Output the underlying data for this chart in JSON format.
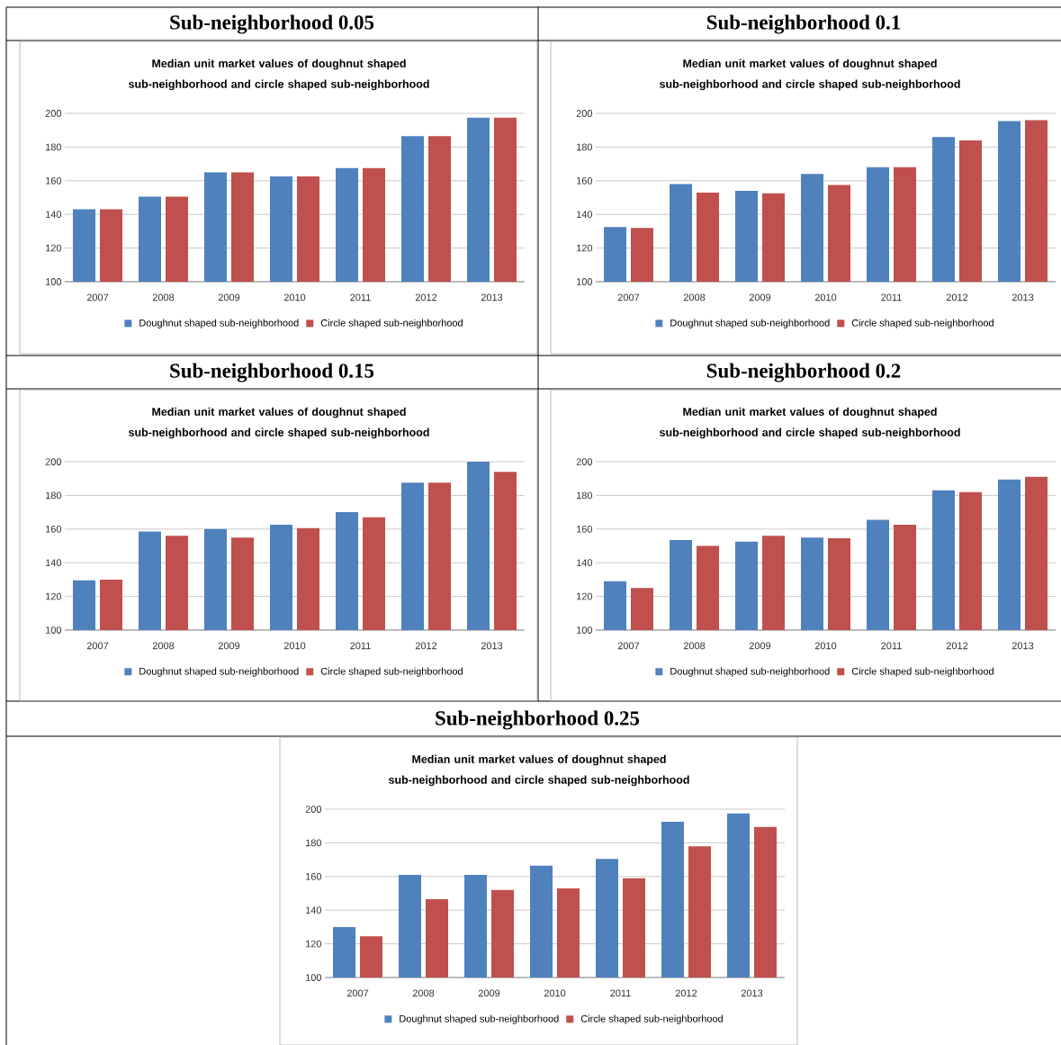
{
  "chart_data": [
    {
      "type": "bar",
      "title": "Sub-neighborhood 0.05",
      "subtitle": "Median unit market values of doughnut shaped sub-neighborhood and circle shaped sub-neighborhood",
      "categories": [
        "2007",
        "2008",
        "2009",
        "2010",
        "2011",
        "2012",
        "2013"
      ],
      "series": [
        {
          "name": "Doughnut shaped sub-neighborhood",
          "color": "#4f81bd",
          "values": [
            143,
            150.5,
            165,
            162.5,
            167.5,
            186.5,
            197.5
          ]
        },
        {
          "name": "Circle shaped sub-neighborhood",
          "color": "#c0504d",
          "values": [
            143,
            150.5,
            165,
            162.5,
            167.5,
            186.5,
            197.5
          ]
        }
      ],
      "ylim": [
        100,
        200
      ],
      "yticks": [
        100,
        120,
        140,
        160,
        180,
        200
      ],
      "grid": "y",
      "legend": "bottom"
    },
    {
      "type": "bar",
      "title": "Sub-neighborhood 0.1",
      "subtitle": "Median unit market values of doughnut shaped sub-neighborhood and circle shaped sub-neighborhood",
      "categories": [
        "2007",
        "2008",
        "2009",
        "2010",
        "2011",
        "2012",
        "2013"
      ],
      "series": [
        {
          "name": "Doughnut shaped sub-neighborhood",
          "color": "#4f81bd",
          "values": [
            132.5,
            158,
            154,
            164,
            168,
            186,
            195.5
          ]
        },
        {
          "name": "Circle shaped sub-neighborhood",
          "color": "#c0504d",
          "values": [
            132,
            153,
            152.5,
            157.5,
            168,
            184,
            196
          ]
        }
      ],
      "ylim": [
        100,
        200
      ],
      "yticks": [
        100,
        120,
        140,
        160,
        180,
        200
      ],
      "grid": "y",
      "legend": "bottom"
    },
    {
      "type": "bar",
      "title": "Sub-neighborhood 0.15",
      "subtitle": "Median unit market values of doughnut shaped sub-neighborhood and circle shaped sub-neighborhood",
      "categories": [
        "2007",
        "2008",
        "2009",
        "2010",
        "2011",
        "2012",
        "2013"
      ],
      "series": [
        {
          "name": "Doughnut shaped sub-neighborhood",
          "color": "#4f81bd",
          "values": [
            129.5,
            158.5,
            160,
            162.5,
            170,
            187.5,
            200
          ]
        },
        {
          "name": "Circle shaped sub-neighborhood",
          "color": "#c0504d",
          "values": [
            130,
            156,
            155,
            160.5,
            167,
            187.5,
            194
          ]
        }
      ],
      "ylim": [
        100,
        200
      ],
      "yticks": [
        100,
        120,
        140,
        160,
        180,
        200
      ],
      "grid": "y",
      "legend": "bottom"
    },
    {
      "type": "bar",
      "title": "Sub-neighborhood 0.2",
      "subtitle": "Median unit market values of doughnut shaped sub-neighborhood and circle shaped sub-neighborhood",
      "categories": [
        "2007",
        "2008",
        "2009",
        "2010",
        "2011",
        "2012",
        "2013"
      ],
      "series": [
        {
          "name": "Doughnut shaped sub-neighborhood",
          "color": "#4f81bd",
          "values": [
            129,
            153.5,
            152.5,
            155,
            165.5,
            183,
            189.5
          ]
        },
        {
          "name": "Circle shaped sub-neighborhood",
          "color": "#c0504d",
          "values": [
            125,
            150,
            156,
            154.5,
            162.5,
            182,
            191
          ]
        }
      ],
      "ylim": [
        100,
        200
      ],
      "yticks": [
        100,
        120,
        140,
        160,
        180,
        200
      ],
      "grid": "y",
      "legend": "bottom"
    },
    {
      "type": "bar",
      "title": "Sub-neighborhood 0.25",
      "subtitle": "Median unit market values of doughnut shaped sub-neighborhood and circle shaped sub-neighborhood",
      "categories": [
        "2007",
        "2008",
        "2009",
        "2010",
        "2011",
        "2012",
        "2013"
      ],
      "series": [
        {
          "name": "Doughnut shaped sub-neighborhood",
          "color": "#4f81bd",
          "values": [
            130,
            161,
            161,
            166.5,
            170.5,
            192.5,
            197.5
          ]
        },
        {
          "name": "Circle shaped sub-neighborhood",
          "color": "#c0504d",
          "values": [
            124.5,
            146.5,
            152,
            153,
            159,
            178,
            189.5
          ]
        }
      ],
      "ylim": [
        100,
        200
      ],
      "yticks": [
        100,
        120,
        140,
        160,
        180,
        200
      ],
      "grid": "y",
      "legend": "bottom"
    }
  ]
}
